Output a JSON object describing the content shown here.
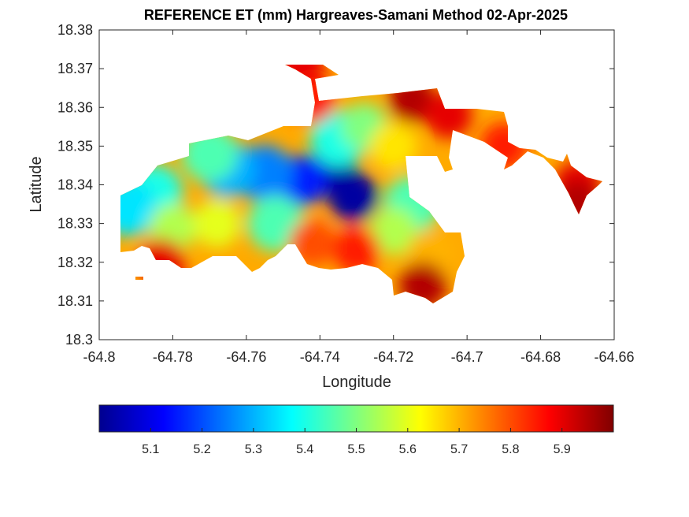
{
  "chart_data": {
    "type": "heatmap",
    "title": "REFERENCE ET (mm) Hargreaves-Samani Method  02-Apr-2025",
    "xlabel": "Longitude",
    "ylabel": "Latitude",
    "xlim": [
      -64.8,
      -64.66
    ],
    "ylim": [
      18.3,
      18.38
    ],
    "xticks": [
      -64.8,
      -64.78,
      -64.76,
      -64.74,
      -64.72,
      -64.7,
      -64.68,
      -64.66
    ],
    "xtick_labels": [
      "-64.8",
      "-64.78",
      "-64.76",
      "-64.74",
      "-64.72",
      "-64.7",
      "-64.68",
      "-64.66"
    ],
    "yticks": [
      18.3,
      18.31,
      18.32,
      18.33,
      18.34,
      18.35,
      18.36,
      18.37,
      18.38
    ],
    "ytick_labels": [
      "18.3",
      "18.31",
      "18.32",
      "18.33",
      "18.34",
      "18.35",
      "18.36",
      "18.37",
      "18.38"
    ],
    "grid": false,
    "colormap": "jet",
    "colorbar": {
      "orientation": "horizontal",
      "location": "below",
      "range": [
        5.0,
        6.0
      ],
      "ticks": [
        5.1,
        5.2,
        5.3,
        5.4,
        5.5,
        5.6,
        5.7,
        5.8,
        5.9
      ],
      "tick_labels": [
        "5.1",
        "5.2",
        "5.3",
        "5.4",
        "5.5",
        "5.6",
        "5.7",
        "5.8",
        "5.9"
      ]
    },
    "field": {
      "description_value_min": 5.0,
      "description_value_max": 6.0,
      "anchors": [
        {
          "lon": -64.737,
          "lat": 18.344,
          "value": 5.03
        },
        {
          "lon": -64.731,
          "lat": 18.337,
          "value": 5.02
        },
        {
          "lon": -64.745,
          "lat": 18.341,
          "value": 5.15
        },
        {
          "lon": -64.755,
          "lat": 18.343,
          "value": 5.25
        },
        {
          "lon": -64.765,
          "lat": 18.344,
          "value": 5.3
        },
        {
          "lon": -64.77,
          "lat": 18.348,
          "value": 5.45
        },
        {
          "lon": -64.785,
          "lat": 18.338,
          "value": 5.4
        },
        {
          "lon": -64.792,
          "lat": 18.334,
          "value": 5.35
        },
        {
          "lon": -64.78,
          "lat": 18.329,
          "value": 5.55
        },
        {
          "lon": -64.768,
          "lat": 18.33,
          "value": 5.6
        },
        {
          "lon": -64.752,
          "lat": 18.33,
          "value": 5.45
        },
        {
          "lon": -64.735,
          "lat": 18.352,
          "value": 5.4
        },
        {
          "lon": -64.728,
          "lat": 18.355,
          "value": 5.5
        },
        {
          "lon": -64.72,
          "lat": 18.35,
          "value": 5.65
        },
        {
          "lon": -64.715,
          "lat": 18.335,
          "value": 5.45
        },
        {
          "lon": -64.72,
          "lat": 18.328,
          "value": 5.55
        },
        {
          "lon": -64.71,
          "lat": 18.322,
          "value": 5.7
        },
        {
          "lon": -64.742,
          "lat": 18.325,
          "value": 5.8
        },
        {
          "lon": -64.73,
          "lat": 18.323,
          "value": 5.85
        },
        {
          "lon": -64.745,
          "lat": 18.37,
          "value": 5.9
        },
        {
          "lon": -64.742,
          "lat": 18.362,
          "value": 5.85
        },
        {
          "lon": -64.715,
          "lat": 18.362,
          "value": 5.95
        },
        {
          "lon": -64.705,
          "lat": 18.358,
          "value": 5.9
        },
        {
          "lon": -64.712,
          "lat": 18.314,
          "value": 5.95
        },
        {
          "lon": -64.783,
          "lat": 18.32,
          "value": 5.9
        },
        {
          "lon": -64.69,
          "lat": 18.35,
          "value": 5.85
        },
        {
          "lon": -64.67,
          "lat": 18.34,
          "value": 5.9
        },
        {
          "lon": -64.67,
          "lat": 18.335,
          "value": 5.95
        }
      ]
    }
  }
}
